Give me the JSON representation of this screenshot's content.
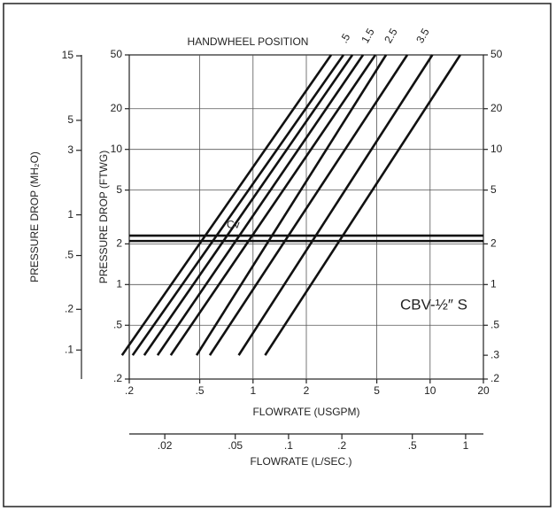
{
  "chart_data": {
    "type": "line",
    "title": "HANDWHEEL POSITION",
    "annotation": "CBV-½″ S",
    "xlabel": "FLOWRATE (USGPM)",
    "x2label": "FLOWRATE (L/SEC.)",
    "ylabel": "PRESSURE DROP (FTWG)",
    "y2label": "PRESSURE DROP (MH₂O)",
    "xscale": "log",
    "yscale": "log",
    "grid": true,
    "color": "#111111",
    "xlim": [
      0.2,
      20
    ],
    "xticks": [
      {
        "value": 0.2,
        "label": ".2"
      },
      {
        "value": 0.5,
        "label": ".5"
      },
      1,
      2,
      5,
      10,
      20
    ],
    "x2lim": [
      0.0126,
      1.26
    ],
    "x2ticks": [
      {
        "value": 0.02,
        "label": ".02"
      },
      {
        "value": 0.05,
        "label": ".05"
      },
      {
        "value": 0.1,
        "label": ".1"
      },
      {
        "value": 0.2,
        "label": ".2"
      },
      {
        "value": 0.5,
        "label": ".5"
      },
      1
    ],
    "ylim": [
      0.2,
      50
    ],
    "yticks": [
      {
        "value": 0.2,
        "label": ".2"
      },
      {
        "value": 0.5,
        "label": ".5"
      },
      1,
      2,
      5,
      10,
      20,
      50
    ],
    "yticks_right": [
      {
        "value": 0.2,
        "label": ".2"
      },
      {
        "value": 0.3,
        "label": ".3"
      },
      {
        "value": 0.5,
        "label": ".5"
      },
      1,
      2,
      5,
      10,
      20,
      50
    ],
    "y2lim": [
      0.061,
      15.24
    ],
    "y2ticks": [
      {
        "value": 0.1,
        "label": ".1"
      },
      {
        "value": 0.2,
        "label": ".2"
      },
      {
        "value": 0.5,
        "label": ".5"
      },
      1,
      3,
      5,
      15
    ],
    "series": [
      {
        "name": ".5",
        "x": [
          0.182,
          2.76
        ],
        "values": [
          0.3,
          50
        ]
      },
      {
        "x": [
          0.209,
          3.24
        ],
        "values": [
          0.3,
          50
        ]
      },
      {
        "name": "1.5",
        "x": [
          0.243,
          3.64
        ],
        "values": [
          0.3,
          50
        ]
      },
      {
        "x": [
          0.289,
          4.18
        ],
        "values": [
          0.3,
          50
        ]
      },
      {
        "name": "2.5",
        "x": [
          0.343,
          4.91
        ],
        "values": [
          0.3,
          50
        ]
      },
      {
        "x": [
          0.48,
          5.64
        ],
        "values": [
          0.3,
          50
        ]
      },
      {
        "name": "3.5",
        "x": [
          0.57,
          7.43
        ],
        "values": [
          0.3,
          50
        ]
      },
      {
        "x": [
          0.83,
          10.3
        ],
        "values": [
          0.3,
          50
        ]
      },
      {
        "x": [
          1.17,
          14.8
        ],
        "values": [
          0.3,
          50
        ]
      },
      {
        "name": "Cv",
        "x": [
          0.2,
          20
        ],
        "values": [
          2.3,
          2.3
        ]
      },
      {
        "x": [
          0.2,
          20
        ],
        "values": [
          2.1,
          2.1
        ]
      }
    ]
  }
}
